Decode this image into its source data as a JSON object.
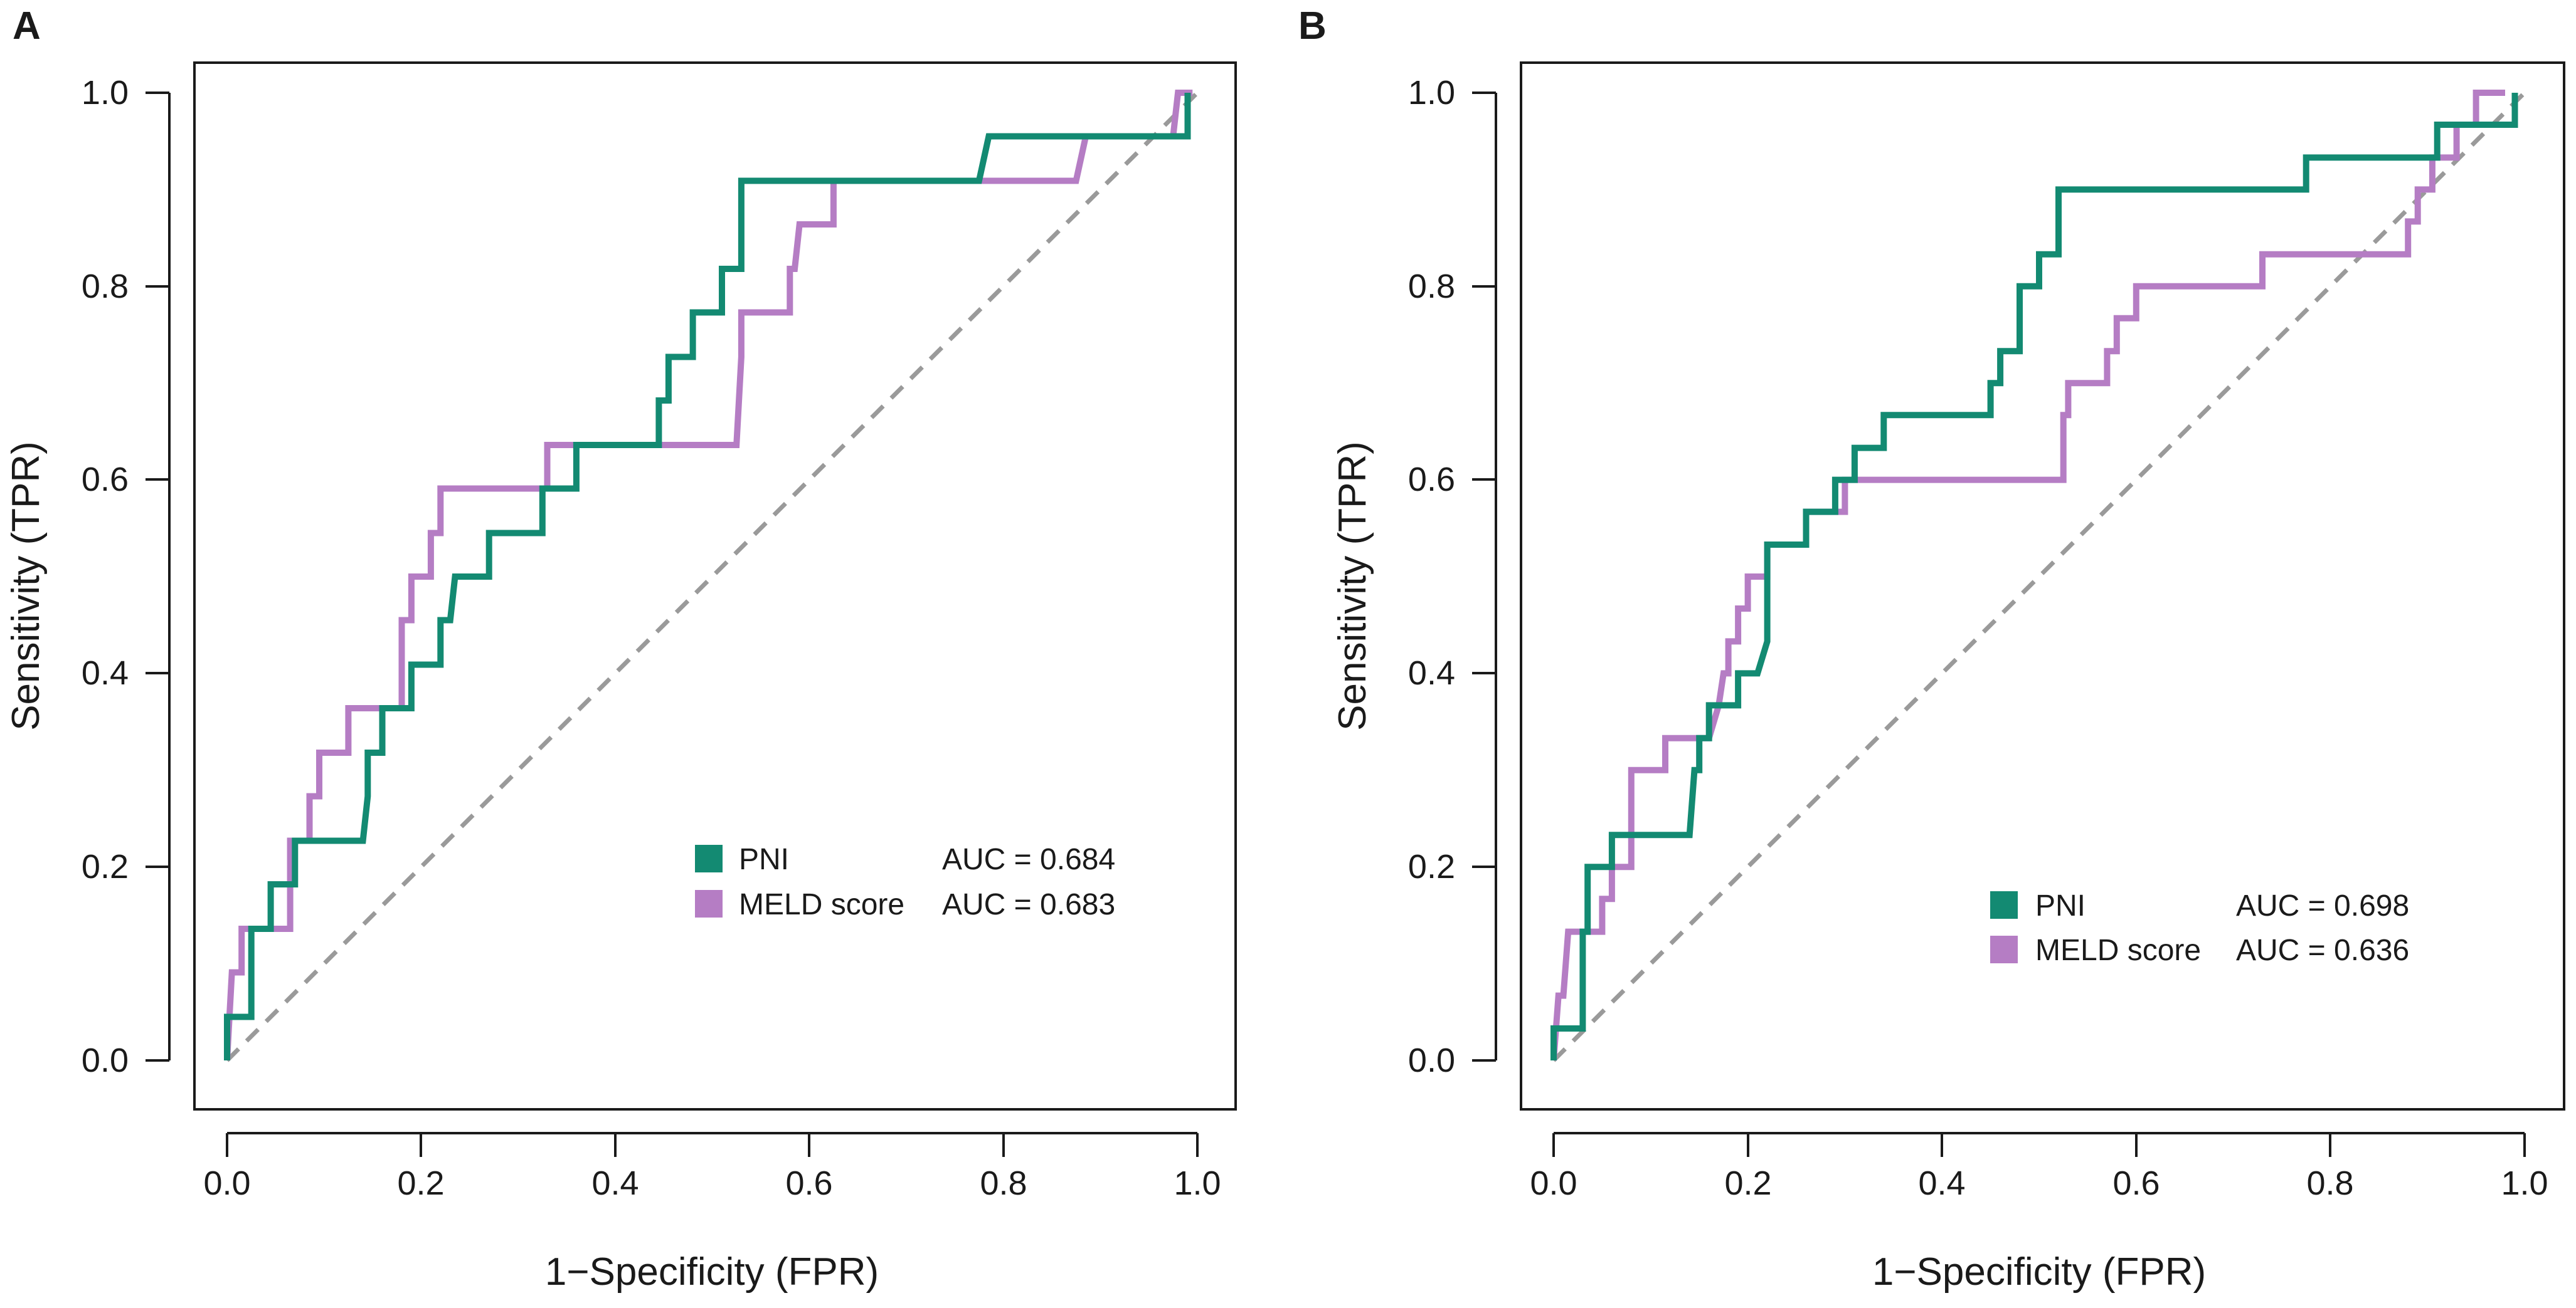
{
  "chart_data": [
    {
      "type": "line",
      "panel_label": "A",
      "xlabel": "1−Specificity (FPR)",
      "ylabel": "Sensitivity (TPR)",
      "xlim": [
        0,
        1
      ],
      "ylim": [
        0,
        1
      ],
      "x_ticks": [
        "0.0",
        "0.2",
        "0.4",
        "0.6",
        "0.8",
        "1.0"
      ],
      "y_ticks": [
        "0.0",
        "0.2",
        "0.4",
        "0.6",
        "0.8",
        "1.0"
      ],
      "grid": false,
      "reference_line": {
        "name": "chance",
        "points": [
          [
            0,
            0
          ],
          [
            1,
            1
          ]
        ],
        "style": "dashed"
      },
      "legend_position": "bottom-right",
      "series": [
        {
          "name": "PNI",
          "auc_label": "AUC = 0.684",
          "points": [
            [
              0.0,
              0.0
            ],
            [
              0.0,
              0.045
            ],
            [
              0.025,
              0.045
            ],
            [
              0.025,
              0.136
            ],
            [
              0.045,
              0.136
            ],
            [
              0.045,
              0.182
            ],
            [
              0.07,
              0.182
            ],
            [
              0.07,
              0.227
            ],
            [
              0.14,
              0.227
            ],
            [
              0.145,
              0.273
            ],
            [
              0.145,
              0.318
            ],
            [
              0.16,
              0.318
            ],
            [
              0.16,
              0.364
            ],
            [
              0.19,
              0.364
            ],
            [
              0.19,
              0.409
            ],
            [
              0.22,
              0.409
            ],
            [
              0.22,
              0.455
            ],
            [
              0.23,
              0.455
            ],
            [
              0.235,
              0.5
            ],
            [
              0.27,
              0.5
            ],
            [
              0.27,
              0.545
            ],
            [
              0.325,
              0.545
            ],
            [
              0.325,
              0.591
            ],
            [
              0.36,
              0.591
            ],
            [
              0.36,
              0.636
            ],
            [
              0.445,
              0.636
            ],
            [
              0.445,
              0.682
            ],
            [
              0.455,
              0.682
            ],
            [
              0.455,
              0.727
            ],
            [
              0.48,
              0.727
            ],
            [
              0.48,
              0.773
            ],
            [
              0.51,
              0.773
            ],
            [
              0.51,
              0.818
            ],
            [
              0.53,
              0.818
            ],
            [
              0.53,
              0.909
            ],
            [
              0.775,
              0.909
            ],
            [
              0.785,
              0.955
            ],
            [
              0.99,
              0.955
            ],
            [
              0.99,
              1.0
            ]
          ]
        },
        {
          "name": "MELD score",
          "auc_label": "AUC = 0.683",
          "points": [
            [
              0.0,
              0.0
            ],
            [
              0.005,
              0.091
            ],
            [
              0.015,
              0.091
            ],
            [
              0.015,
              0.136
            ],
            [
              0.065,
              0.136
            ],
            [
              0.065,
              0.227
            ],
            [
              0.085,
              0.227
            ],
            [
              0.085,
              0.273
            ],
            [
              0.095,
              0.273
            ],
            [
              0.095,
              0.318
            ],
            [
              0.125,
              0.318
            ],
            [
              0.125,
              0.364
            ],
            [
              0.18,
              0.364
            ],
            [
              0.18,
              0.455
            ],
            [
              0.19,
              0.455
            ],
            [
              0.19,
              0.5
            ],
            [
              0.21,
              0.5
            ],
            [
              0.21,
              0.545
            ],
            [
              0.22,
              0.545
            ],
            [
              0.22,
              0.591
            ],
            [
              0.33,
              0.591
            ],
            [
              0.33,
              0.636
            ],
            [
              0.525,
              0.636
            ],
            [
              0.53,
              0.727
            ],
            [
              0.53,
              0.773
            ],
            [
              0.58,
              0.773
            ],
            [
              0.58,
              0.818
            ],
            [
              0.585,
              0.818
            ],
            [
              0.59,
              0.864
            ],
            [
              0.625,
              0.864
            ],
            [
              0.625,
              0.909
            ],
            [
              0.875,
              0.909
            ],
            [
              0.885,
              0.955
            ],
            [
              0.975,
              0.955
            ],
            [
              0.98,
              1.0
            ],
            [
              0.995,
              1.0
            ]
          ]
        }
      ]
    },
    {
      "type": "line",
      "panel_label": "B",
      "xlabel": "1−Specificity (FPR)",
      "ylabel": "Sensitivity (TPR)",
      "xlim": [
        0,
        1
      ],
      "ylim": [
        0,
        1
      ],
      "x_ticks": [
        "0.0",
        "0.2",
        "0.4",
        "0.6",
        "0.8",
        "1.0"
      ],
      "y_ticks": [
        "0.0",
        "0.2",
        "0.4",
        "0.6",
        "0.8",
        "1.0"
      ],
      "grid": false,
      "reference_line": {
        "name": "chance",
        "points": [
          [
            0,
            0
          ],
          [
            1,
            1
          ]
        ],
        "style": "dashed"
      },
      "legend_position": "bottom-right",
      "series": [
        {
          "name": "PNI",
          "auc_label": "AUC = 0.698",
          "points": [
            [
              0.0,
              0.0
            ],
            [
              0.0,
              0.033
            ],
            [
              0.03,
              0.033
            ],
            [
              0.03,
              0.133
            ],
            [
              0.035,
              0.133
            ],
            [
              0.035,
              0.2
            ],
            [
              0.06,
              0.2
            ],
            [
              0.06,
              0.233
            ],
            [
              0.14,
              0.233
            ],
            [
              0.145,
              0.3
            ],
            [
              0.15,
              0.3
            ],
            [
              0.15,
              0.333
            ],
            [
              0.16,
              0.333
            ],
            [
              0.16,
              0.367
            ],
            [
              0.19,
              0.367
            ],
            [
              0.19,
              0.4
            ],
            [
              0.21,
              0.4
            ],
            [
              0.22,
              0.433
            ],
            [
              0.22,
              0.533
            ],
            [
              0.26,
              0.533
            ],
            [
              0.26,
              0.567
            ],
            [
              0.29,
              0.567
            ],
            [
              0.29,
              0.6
            ],
            [
              0.31,
              0.6
            ],
            [
              0.31,
              0.633
            ],
            [
              0.34,
              0.633
            ],
            [
              0.34,
              0.667
            ],
            [
              0.45,
              0.667
            ],
            [
              0.45,
              0.7
            ],
            [
              0.46,
              0.7
            ],
            [
              0.46,
              0.733
            ],
            [
              0.48,
              0.733
            ],
            [
              0.48,
              0.767
            ],
            [
              0.48,
              0.8
            ],
            [
              0.5,
              0.8
            ],
            [
              0.5,
              0.833
            ],
            [
              0.52,
              0.833
            ],
            [
              0.52,
              0.9
            ],
            [
              0.775,
              0.9
            ],
            [
              0.775,
              0.933
            ],
            [
              0.91,
              0.933
            ],
            [
              0.91,
              0.967
            ],
            [
              0.99,
              0.967
            ],
            [
              0.99,
              1.0
            ]
          ]
        },
        {
          "name": "MELD score",
          "auc_label": "AUC = 0.636",
          "points": [
            [
              0.0,
              0.0
            ],
            [
              0.005,
              0.067
            ],
            [
              0.01,
              0.067
            ],
            [
              0.015,
              0.133
            ],
            [
              0.05,
              0.133
            ],
            [
              0.05,
              0.167
            ],
            [
              0.06,
              0.167
            ],
            [
              0.06,
              0.2
            ],
            [
              0.08,
              0.2
            ],
            [
              0.08,
              0.233
            ],
            [
              0.08,
              0.3
            ],
            [
              0.115,
              0.3
            ],
            [
              0.115,
              0.333
            ],
            [
              0.16,
              0.333
            ],
            [
              0.17,
              0.367
            ],
            [
              0.175,
              0.4
            ],
            [
              0.18,
              0.4
            ],
            [
              0.18,
              0.433
            ],
            [
              0.19,
              0.433
            ],
            [
              0.19,
              0.467
            ],
            [
              0.2,
              0.467
            ],
            [
              0.2,
              0.5
            ],
            [
              0.22,
              0.5
            ],
            [
              0.22,
              0.533
            ],
            [
              0.26,
              0.533
            ],
            [
              0.26,
              0.567
            ],
            [
              0.3,
              0.567
            ],
            [
              0.3,
              0.6
            ],
            [
              0.525,
              0.6
            ],
            [
              0.525,
              0.667
            ],
            [
              0.53,
              0.667
            ],
            [
              0.53,
              0.7
            ],
            [
              0.57,
              0.7
            ],
            [
              0.57,
              0.733
            ],
            [
              0.58,
              0.733
            ],
            [
              0.58,
              0.767
            ],
            [
              0.6,
              0.767
            ],
            [
              0.6,
              0.8
            ],
            [
              0.73,
              0.8
            ],
            [
              0.73,
              0.833
            ],
            [
              0.88,
              0.833
            ],
            [
              0.88,
              0.867
            ],
            [
              0.89,
              0.867
            ],
            [
              0.89,
              0.9
            ],
            [
              0.905,
              0.9
            ],
            [
              0.905,
              0.933
            ],
            [
              0.93,
              0.933
            ],
            [
              0.93,
              0.967
            ],
            [
              0.95,
              0.967
            ],
            [
              0.95,
              1.0
            ],
            [
              0.98,
              1.0
            ]
          ]
        }
      ]
    }
  ],
  "colors": {
    "pni": "#138a72",
    "meld": "#b57dc4",
    "reference": "#9a9a9a",
    "axis": "#1a1a1a"
  }
}
